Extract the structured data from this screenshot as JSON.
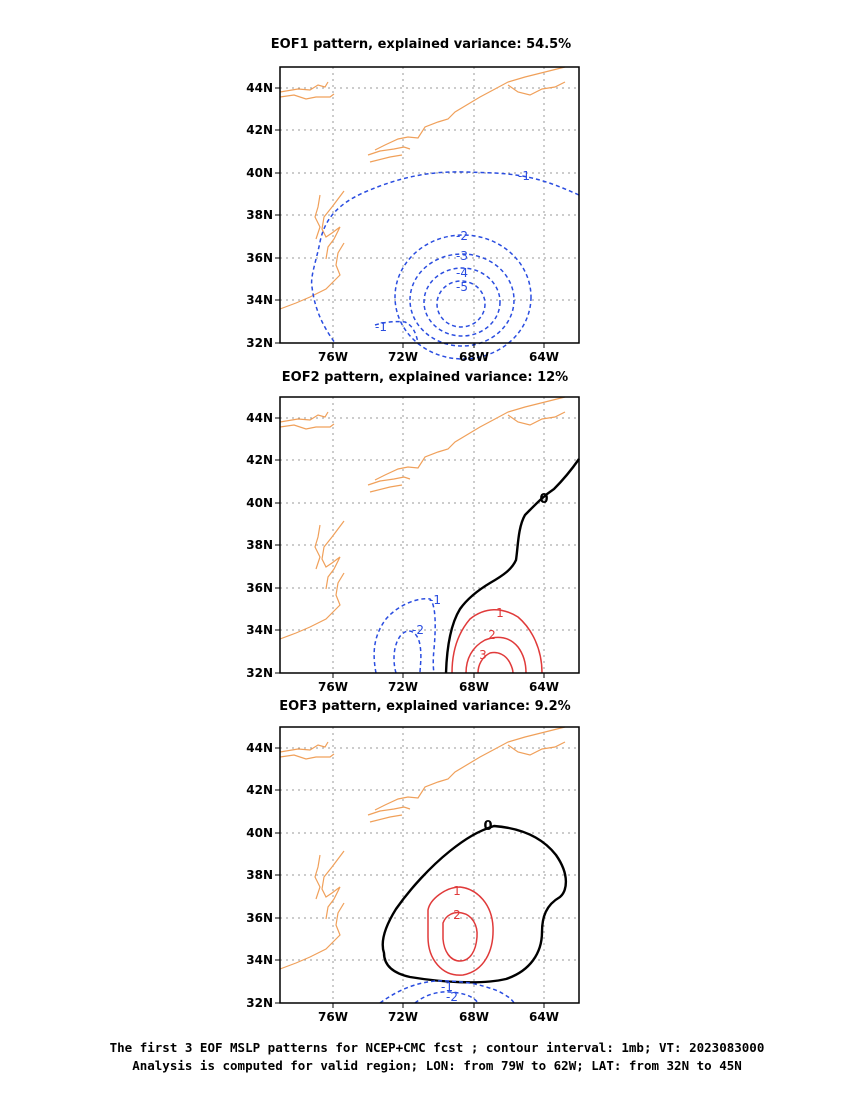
{
  "panels": [
    {
      "title": "EOF1 pattern, explained variance: 54.5%",
      "lat_ticks": [
        "44N",
        "42N",
        "40N",
        "38N",
        "36N",
        "34N",
        "32N"
      ],
      "lon_ticks": [
        "76W",
        "72W",
        "68W",
        "64W"
      ],
      "contour_labels": [
        "-1",
        "-1",
        "-2",
        "-3",
        "-4",
        "-5"
      ]
    },
    {
      "title": "EOF2 pattern, explained variance: 12%",
      "lat_ticks": [
        "44N",
        "42N",
        "40N",
        "38N",
        "36N",
        "34N",
        "32N"
      ],
      "lon_ticks": [
        "76W",
        "72W",
        "68W",
        "64W"
      ],
      "contour_labels": [
        "-1",
        "-2",
        "1",
        "2",
        "3",
        "0"
      ]
    },
    {
      "title": "EOF3 pattern, explained variance: 9.2%",
      "lat_ticks": [
        "44N",
        "42N",
        "40N",
        "38N",
        "36N",
        "34N",
        "32N"
      ],
      "lon_ticks": [
        "76W",
        "72W",
        "68W",
        "64W"
      ],
      "contour_labels": [
        "0",
        "1",
        "2",
        "-1",
        "-2"
      ]
    }
  ],
  "footer": {
    "line1": "The first 3 EOF MSLP patterns for NCEP+CMC fcst ; contour interval: 1mb; VT: 2023083000",
    "line2": "Analysis is computed for valid region; LON: from 79W to 62W; LAT: from 32N to 45N"
  },
  "colors": {
    "negative_contour": "#2a4de0",
    "positive_contour": "#e03a3a",
    "zero_contour": "#000000",
    "coastline": "#f0a05a"
  }
}
